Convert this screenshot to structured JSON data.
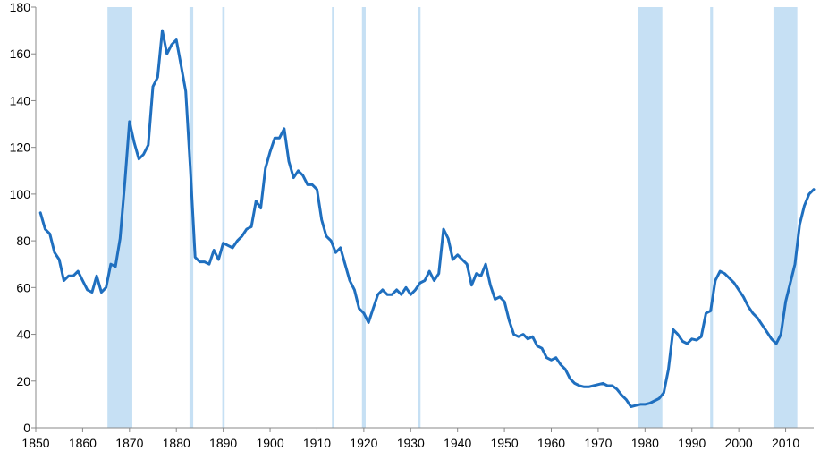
{
  "chart_data": {
    "type": "line",
    "title": "",
    "xlabel": "",
    "ylabel": "",
    "xlim": [
      1850,
      2016
    ],
    "ylim": [
      0,
      180
    ],
    "xticks": [
      1850,
      1860,
      1870,
      1880,
      1890,
      1900,
      1910,
      1920,
      1930,
      1940,
      1950,
      1960,
      1970,
      1980,
      1990,
      2000,
      2010
    ],
    "yticks": [
      0,
      20,
      40,
      60,
      80,
      100,
      120,
      140,
      160,
      180
    ],
    "grid": false,
    "legend": "none",
    "colors": {
      "line": "#1f6fbf",
      "shade": "#c6e0f4",
      "axis": "#888888"
    },
    "shaded_periods": [
      [
        1865.3,
        1870.6
      ],
      [
        1882.8,
        1883.6
      ],
      [
        1889.8,
        1890.3
      ],
      [
        1913.2,
        1913.6
      ],
      [
        1919.6,
        1920.4
      ],
      [
        1931.6,
        1932.1
      ],
      [
        1978.5,
        1983.7
      ],
      [
        1993.9,
        1994.5
      ],
      [
        2007.4,
        2012.5
      ]
    ],
    "series": [
      {
        "x": [
          1851,
          1852,
          1853,
          1854,
          1855,
          1856,
          1857,
          1858,
          1859,
          1860,
          1861,
          1862,
          1863,
          1864,
          1865,
          1866,
          1867,
          1868,
          1869,
          1870,
          1871,
          1872,
          1873,
          1874,
          1875,
          1876,
          1877,
          1878,
          1879,
          1880,
          1881,
          1882,
          1883,
          1884,
          1885,
          1886,
          1887,
          1888,
          1889,
          1890,
          1891,
          1892,
          1893,
          1894,
          1895,
          1896,
          1897,
          1898,
          1899,
          1900,
          1901,
          1902,
          1903,
          1904,
          1905,
          1906,
          1907,
          1908,
          1909,
          1910,
          1911,
          1912,
          1913,
          1914,
          1915,
          1916,
          1917,
          1918,
          1919,
          1920,
          1921,
          1922,
          1923,
          1924,
          1925,
          1926,
          1927,
          1928,
          1929,
          1930,
          1931,
          1932,
          1933,
          1934,
          1935,
          1936,
          1937,
          1938,
          1939,
          1940,
          1941,
          1942,
          1943,
          1944,
          1945,
          1946,
          1947,
          1948,
          1949,
          1950,
          1951,
          1952,
          1953,
          1954,
          1955,
          1956,
          1957,
          1958,
          1959,
          1960,
          1961,
          1962,
          1963,
          1964,
          1965,
          1966,
          1967,
          1968,
          1969,
          1970,
          1971,
          1972,
          1973,
          1974,
          1975,
          1976,
          1977,
          1978,
          1979,
          1980,
          1981,
          1982,
          1983,
          1984,
          1985,
          1986,
          1987,
          1988,
          1989,
          1990,
          1991,
          1992,
          1993,
          1994,
          1995,
          1996,
          1997,
          1998,
          1999,
          2000,
          2001,
          2002,
          2003,
          2004,
          2005,
          2006,
          2007,
          2008,
          2009,
          2010,
          2011,
          2012,
          2013,
          2014,
          2015,
          2016
        ],
        "y": [
          92,
          85,
          83,
          75,
          72,
          63,
          65,
          65,
          67,
          63,
          59,
          58,
          65,
          58,
          60,
          70,
          69,
          81,
          105,
          131,
          122,
          115,
          117,
          121,
          146,
          150,
          170,
          160,
          164,
          166,
          155,
          144,
          110,
          73,
          71,
          71,
          70,
          76,
          72,
          79,
          78,
          77,
          80,
          82,
          85,
          86,
          97,
          94,
          111,
          118,
          124,
          124,
          128,
          114,
          107,
          110,
          108,
          104,
          104,
          102,
          89,
          82,
          80,
          75,
          77,
          70,
          63,
          59,
          51,
          49,
          45,
          51,
          57,
          59,
          57,
          57,
          59,
          57,
          60,
          57,
          59,
          62,
          63,
          67,
          63,
          66,
          85,
          81,
          72,
          74,
          72,
          70,
          61,
          66,
          65,
          70,
          61,
          55,
          56,
          54,
          46,
          40,
          39,
          40,
          38,
          39,
          35,
          34,
          30,
          29,
          30,
          27,
          25,
          21,
          19,
          18,
          17.5,
          17.5,
          18,
          18.5,
          19,
          18,
          18,
          16.5,
          14,
          12,
          9,
          9.5,
          10,
          10,
          10.5,
          11.5,
          12.5,
          15,
          25,
          42,
          40,
          37,
          36,
          38,
          37.5,
          39,
          49,
          50,
          63,
          67,
          66,
          64,
          62,
          59,
          56,
          52,
          49,
          47,
          44,
          41,
          38,
          36,
          40,
          54,
          62,
          70,
          87,
          95,
          100,
          102
        ]
      }
    ]
  }
}
